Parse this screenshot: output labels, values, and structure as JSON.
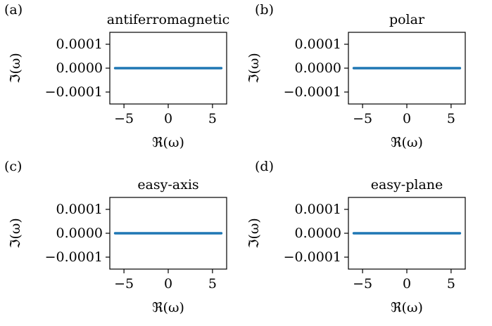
{
  "figure": {
    "colors": {
      "series": "#1f77b4",
      "axes": "#000000",
      "background": "#ffffff"
    }
  },
  "chart_data": [
    {
      "panel": "(a)",
      "type": "scatter",
      "title": "antiferromagnetic",
      "xlabel": "ℜ(ω)",
      "ylabel": "ℑ(ω)",
      "xlim": [
        -6.6,
        6.6
      ],
      "ylim": [
        -0.00015,
        0.00015
      ],
      "xticks": [
        -5,
        0,
        5
      ],
      "xtick_labels": [
        "−5",
        "0",
        "5"
      ],
      "yticks": [
        0.0001,
        0,
        -0.0001
      ],
      "ytick_labels": [
        "0.0001",
        "0.0000",
        "−0.0001"
      ],
      "grid": false,
      "series": [
        {
          "x_range": [
            -6,
            6
          ],
          "y": 0
        }
      ]
    },
    {
      "panel": "(b)",
      "type": "scatter",
      "title": "polar",
      "xlabel": "ℜ(ω)",
      "ylabel": "ℑ(ω)",
      "xlim": [
        -6.6,
        6.6
      ],
      "ylim": [
        -0.00015,
        0.00015
      ],
      "xticks": [
        -5,
        0,
        5
      ],
      "xtick_labels": [
        "−5",
        "0",
        "5"
      ],
      "yticks": [
        0.0001,
        0,
        -0.0001
      ],
      "ytick_labels": [
        "0.0001",
        "0.0000",
        "−0.0001"
      ],
      "grid": false,
      "series": [
        {
          "x_range": [
            -6,
            6
          ],
          "y": 0
        }
      ]
    },
    {
      "panel": "(c)",
      "type": "scatter",
      "title": "easy-axis",
      "xlabel": "ℜ(ω)",
      "ylabel": "ℑ(ω)",
      "xlim": [
        -6.6,
        6.6
      ],
      "ylim": [
        -0.00015,
        0.00015
      ],
      "xticks": [
        -5,
        0,
        5
      ],
      "xtick_labels": [
        "−5",
        "0",
        "5"
      ],
      "yticks": [
        0.0001,
        0,
        -0.0001
      ],
      "ytick_labels": [
        "0.0001",
        "0.0000",
        "−0.0001"
      ],
      "grid": false,
      "series": [
        {
          "x_range": [
            -6,
            6
          ],
          "y": 0
        }
      ]
    },
    {
      "panel": "(d)",
      "type": "scatter",
      "title": "easy-plane",
      "xlabel": "ℜ(ω)",
      "ylabel": "ℑ(ω)",
      "xlim": [
        -6.6,
        6.6
      ],
      "ylim": [
        -0.00015,
        0.00015
      ],
      "xticks": [
        -5,
        0,
        5
      ],
      "xtick_labels": [
        "−5",
        "0",
        "5"
      ],
      "yticks": [
        0.0001,
        0,
        -0.0001
      ],
      "ytick_labels": [
        "0.0001",
        "0.0000",
        "−0.0001"
      ],
      "grid": false,
      "series": [
        {
          "x_range": [
            -6,
            6
          ],
          "y": 0
        }
      ]
    }
  ]
}
